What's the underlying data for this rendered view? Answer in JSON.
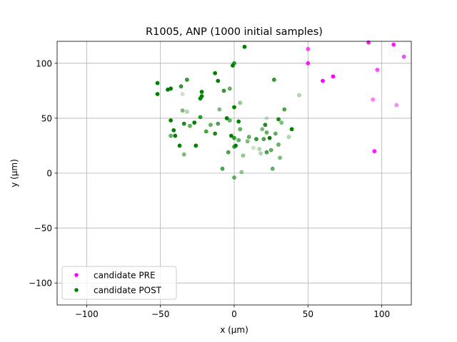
{
  "chart_data": {
    "type": "scatter",
    "title": "R1005, ANP (1000 initial samples)",
    "xlabel": "x (µm)",
    "ylabel": "y (µm)",
    "xlim": [
      -120,
      120
    ],
    "ylim": [
      -120,
      120
    ],
    "xticks": [
      -100,
      -50,
      0,
      50,
      100
    ],
    "yticks": [
      100,
      50,
      0,
      -50,
      -100
    ],
    "xtick_labels": [
      "−100",
      "−50",
      "0",
      "50",
      "100"
    ],
    "ytick_labels": [
      "100",
      "50",
      "0",
      "−50",
      "−100"
    ],
    "grid": true,
    "legend_position": "lower-left",
    "series": [
      {
        "name": "candidate PRE",
        "color": "#ff00ff",
        "points": [
          [
            50,
            113,
            0.7
          ],
          [
            50,
            100,
            0.9
          ],
          [
            60,
            84,
            1.0
          ],
          [
            67,
            88,
            1.0
          ],
          [
            91,
            119,
            0.9
          ],
          [
            97,
            94,
            0.7
          ],
          [
            108,
            117,
            0.9
          ],
          [
            115,
            106,
            0.7
          ],
          [
            110,
            62,
            0.45
          ],
          [
            94,
            67,
            0.5
          ],
          [
            95,
            20,
            0.9
          ]
        ]
      },
      {
        "name": "candidate POST",
        "color": "#008000",
        "points": [
          [
            -52,
            82,
            1.0
          ],
          [
            -52,
            72,
            1.0
          ],
          [
            -45,
            76,
            1.0
          ],
          [
            -43,
            77,
            1.0
          ],
          [
            -36,
            79,
            0.8
          ],
          [
            -32,
            85,
            0.8
          ],
          [
            -35,
            72,
            0.2
          ],
          [
            -13,
            91,
            1.0
          ],
          [
            -11,
            84,
            1.0
          ],
          [
            -7,
            75,
            0.8
          ],
          [
            -3,
            77,
            0.6
          ],
          [
            -1,
            98,
            1.0
          ],
          [
            0,
            100,
            0.8
          ],
          [
            7,
            115,
            1.0
          ],
          [
            27,
            85,
            0.8
          ],
          [
            44,
            71,
            0.3
          ],
          [
            -22,
            74,
            1.0
          ],
          [
            -22,
            70,
            1.0
          ],
          [
            -23,
            68,
            1.0
          ],
          [
            -35,
            57,
            0.5
          ],
          [
            -32,
            56,
            0.3
          ],
          [
            -43,
            48,
            1.0
          ],
          [
            -41,
            39,
            1.0
          ],
          [
            -40,
            34,
            1.0
          ],
          [
            -43,
            34,
            0.6
          ],
          [
            -37,
            25,
            1.0
          ],
          [
            -34,
            17,
            0.5
          ],
          [
            -34,
            45,
            0.9
          ],
          [
            -30,
            43,
            0.6
          ],
          [
            -27,
            46,
            1.0
          ],
          [
            -26,
            25,
            1.0
          ],
          [
            -23,
            51,
            0.8
          ],
          [
            -19,
            38,
            0.7
          ],
          [
            -16,
            44,
            0.6
          ],
          [
            -13,
            36,
            0.9
          ],
          [
            -11,
            45,
            0.7
          ],
          [
            -10,
            58,
            0.5
          ],
          [
            -5,
            50,
            1.0
          ],
          [
            -3,
            48,
            0.6
          ],
          [
            -2,
            34,
            1.0
          ],
          [
            -4,
            19,
            0.7
          ],
          [
            -8,
            4,
            0.7
          ],
          [
            0,
            60,
            1.0
          ],
          [
            0,
            32,
            0.8
          ],
          [
            1,
            25,
            1.0
          ],
          [
            0,
            24,
            0.7
          ],
          [
            0,
            -4,
            0.6
          ],
          [
            3,
            47,
            1.0
          ],
          [
            3,
            30,
            0.6
          ],
          [
            4,
            64,
            0.4
          ],
          [
            4,
            40,
            0.6
          ],
          [
            5,
            1,
            0.4
          ],
          [
            6,
            16,
            0.4
          ],
          [
            9,
            29,
            0.5
          ],
          [
            10,
            33,
            0.6
          ],
          [
            13,
            23,
            0.2
          ],
          [
            15,
            31,
            0.8
          ],
          [
            17,
            22,
            0.3
          ],
          [
            19,
            40,
            0.5
          ],
          [
            20,
            31,
            0.7
          ],
          [
            21,
            44,
            0.9
          ],
          [
            22,
            37,
            0.6
          ],
          [
            22,
            50,
            0.2
          ],
          [
            22,
            19,
            0.7
          ],
          [
            24,
            32,
            1.0
          ],
          [
            25,
            21,
            0.6
          ],
          [
            26,
            4,
            0.6
          ],
          [
            28,
            36,
            0.6
          ],
          [
            30,
            49,
            0.9
          ],
          [
            30,
            26,
            0.6
          ],
          [
            31,
            14,
            0.5
          ],
          [
            32,
            46,
            0.5
          ],
          [
            34,
            58,
            0.7
          ],
          [
            37,
            33,
            0.3
          ],
          [
            39,
            40,
            1.0
          ],
          [
            18,
            18,
            0.3
          ]
        ]
      }
    ]
  }
}
